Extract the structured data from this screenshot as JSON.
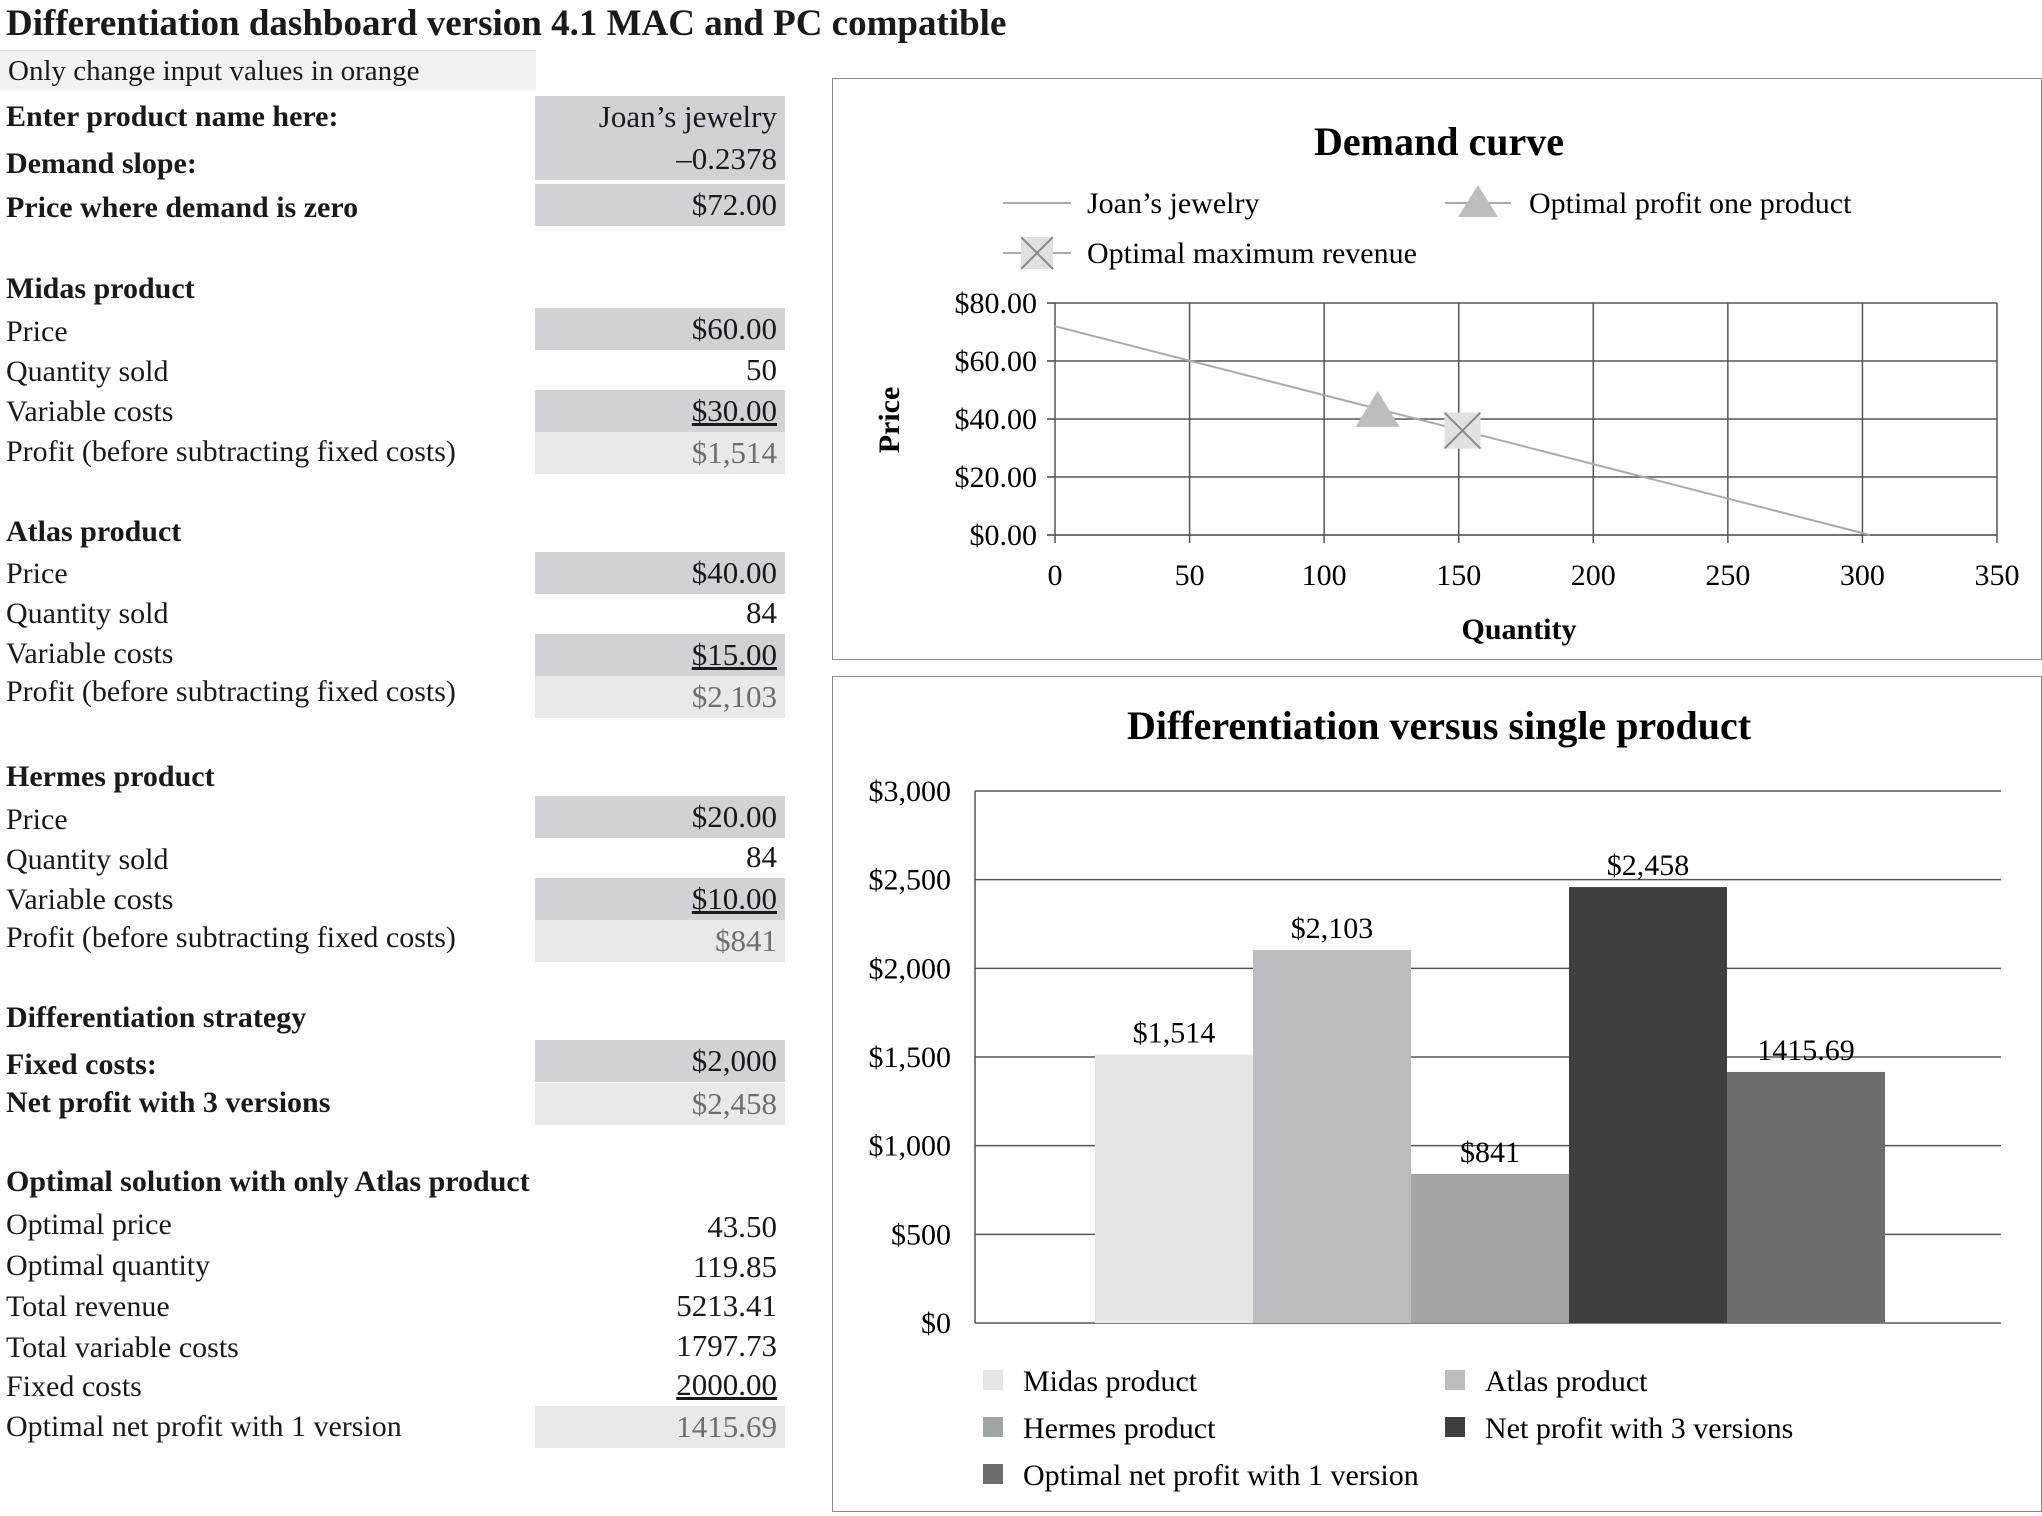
{
  "title": "Differentiation dashboard version 4.1 MAC and PC compatible",
  "note": "Only change input values in orange",
  "inputs": {
    "product_name_label": "Enter product name here:",
    "product_name": "Joan’s jewelry",
    "demand_slope_label": "Demand slope:",
    "demand_slope": "–0.2378",
    "zero_price_label": "Price where demand is zero",
    "zero_price": "$72.00"
  },
  "products": [
    {
      "heading": "Midas product",
      "price_label": "Price",
      "price": "$60.00",
      "qty_label": "Quantity sold",
      "qty": "50",
      "vc_label": "Variable costs",
      "vc": "$30.00",
      "profit_label": "Profit (before subtracting fixed costs)",
      "profit": "$1,514"
    },
    {
      "heading": "Atlas product",
      "price_label": "Price",
      "price": "$40.00",
      "qty_label": "Quantity sold",
      "qty": "84",
      "vc_label": "Variable costs",
      "vc": "$15.00",
      "profit_label": "Profit (before subtracting fixed costs)",
      "profit": "$2,103"
    },
    {
      "heading": "Hermes product",
      "price_label": "Price",
      "price": "$20.00",
      "qty_label": "Quantity sold",
      "qty": "84",
      "vc_label": "Variable costs",
      "vc": "$10.00",
      "profit_label": "Profit (before subtracting fixed costs)",
      "profit": "$841"
    }
  ],
  "strategy": {
    "heading": "Differentiation strategy",
    "fixed_label": "Fixed costs:",
    "fixed": "$2,000",
    "net_label": "Net profit with 3 versions",
    "net": "$2,458"
  },
  "optimal": {
    "heading": "Optimal solution with only Atlas product",
    "rows": [
      {
        "label": "Optimal price",
        "value": "43.50"
      },
      {
        "label": "Optimal quantity",
        "value": "119.85"
      },
      {
        "label": "Total revenue",
        "value": "5213.41"
      },
      {
        "label": "Total variable costs",
        "value": "1797.73"
      },
      {
        "label": "Fixed costs",
        "value": "2000.00"
      },
      {
        "label": "Optimal net profit with 1 version",
        "value": "1415.69"
      }
    ]
  },
  "chart_data": [
    {
      "type": "line",
      "title": "Demand curve",
      "xlabel": "Quantity",
      "ylabel": "Price",
      "xlim": [
        0,
        350
      ],
      "ylim": [
        0,
        80
      ],
      "x_ticks": [
        "0",
        "50",
        "100",
        "150",
        "200",
        "250",
        "300",
        "350"
      ],
      "y_ticks": [
        "$0.00",
        "$20.00",
        "$40.00",
        "$60.00",
        "$80.00"
      ],
      "grid": true,
      "legend_position": "top",
      "series": [
        {
          "name": "Joan’s jewelry",
          "type": "line",
          "x": [
            0,
            302.8
          ],
          "y": [
            72,
            0
          ]
        },
        {
          "name": "Optimal profit one product",
          "type": "marker-triangle",
          "x": [
            119.85
          ],
          "y": [
            43.5
          ]
        },
        {
          "name": "Optimal maximum revenue",
          "type": "marker-x",
          "x": [
            151.4
          ],
          "y": [
            36
          ]
        }
      ]
    },
    {
      "type": "bar",
      "title": "Differentiation versus single product",
      "ylim": [
        0,
        3000
      ],
      "y_ticks": [
        "$0",
        "$500",
        "$1,000",
        "$1,500",
        "$2,000",
        "$2,500",
        "$3,000"
      ],
      "grid": true,
      "legend_position": "bottom",
      "categories": [
        "Midas product",
        "Atlas product",
        "Hermes product",
        "Net profit with 3 versions",
        "Optimal net profit with 1 version"
      ],
      "values": [
        1514,
        2103,
        841,
        2458,
        1415.69
      ],
      "labels": [
        "$1,514",
        "$2,103",
        "$841",
        "$2,458",
        "1415.69"
      ],
      "colors": [
        "#e6e6e6",
        "#bcbcbf",
        "#a3a4a6",
        "#3f3f3f",
        "#6c6c6e"
      ]
    }
  ]
}
